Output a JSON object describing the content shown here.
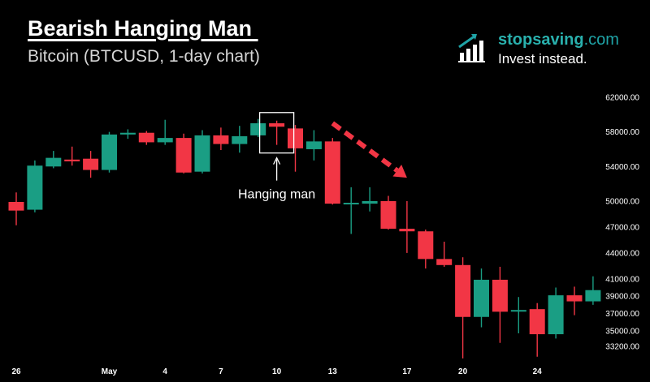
{
  "header": {
    "title": "Bearish Hanging Man ",
    "subtitle": "Bitcoin (BTCUSD, 1-day chart)"
  },
  "logo": {
    "brand_bold": "stopsaving",
    "brand_suffix": ".com",
    "tagline": "Invest instead.",
    "icon": "bar-chart-growth-icon",
    "color": "#1fa3a6"
  },
  "colors": {
    "background": "#000000",
    "up": "#1a9e84",
    "down": "#f23645",
    "axis_text": "#ffffff",
    "annotation_arrow": "#f23645"
  },
  "chart_data": {
    "type": "candlestick",
    "title": "Bearish Hanging Man ",
    "xlabel": "",
    "ylabel": "",
    "ylim": [
      31800,
      63300
    ],
    "grid": false,
    "y_ticks": [
      "62000.00",
      "58000.00",
      "54000.00",
      "50000.00",
      "47000.00",
      "44000.00",
      "41000.00",
      "39000.00",
      "37000.00",
      "35000.00",
      "33200.00"
    ],
    "x_tick_labels": [
      {
        "label": "26",
        "day": 0
      },
      {
        "label": "May",
        "day": 5
      },
      {
        "label": "4",
        "day": 8
      },
      {
        "label": "7",
        "day": 11
      },
      {
        "label": "10",
        "day": 14
      },
      {
        "label": "13",
        "day": 17
      },
      {
        "label": "17",
        "day": 21
      },
      {
        "label": "20",
        "day": 24
      },
      {
        "label": "24",
        "day": 28
      }
    ],
    "candles": [
      {
        "o": 49900,
        "h": 51000,
        "l": 47200,
        "c": 48900
      },
      {
        "o": 49000,
        "h": 54700,
        "l": 48700,
        "c": 54100
      },
      {
        "o": 54000,
        "h": 55800,
        "l": 53800,
        "c": 55000
      },
      {
        "o": 54800,
        "h": 56300,
        "l": 54100,
        "c": 54600
      },
      {
        "o": 54900,
        "h": 55800,
        "l": 52700,
        "c": 53600
      },
      {
        "o": 53600,
        "h": 58000,
        "l": 53300,
        "c": 57700
      },
      {
        "o": 57700,
        "h": 58300,
        "l": 57200,
        "c": 57900
      },
      {
        "o": 57900,
        "h": 58100,
        "l": 56500,
        "c": 56800
      },
      {
        "o": 56800,
        "h": 59400,
        "l": 56500,
        "c": 57300
      },
      {
        "o": 57300,
        "h": 57800,
        "l": 53200,
        "c": 53300
      },
      {
        "o": 53400,
        "h": 58200,
        "l": 53200,
        "c": 57600
      },
      {
        "o": 57600,
        "h": 58500,
        "l": 55900,
        "c": 56600
      },
      {
        "o": 56600,
        "h": 58700,
        "l": 55600,
        "c": 57500
      },
      {
        "o": 57600,
        "h": 59500,
        "l": 57400,
        "c": 59000
      },
      {
        "o": 59000,
        "h": 59300,
        "l": 56500,
        "c": 58600
      },
      {
        "o": 58400,
        "h": 58800,
        "l": 53400,
        "c": 56100
      },
      {
        "o": 56000,
        "h": 58200,
        "l": 54700,
        "c": 56900
      },
      {
        "o": 56900,
        "h": 57300,
        "l": 49600,
        "c": 49700
      },
      {
        "o": 49700,
        "h": 51600,
        "l": 46200,
        "c": 49800
      },
      {
        "o": 49700,
        "h": 51600,
        "l": 48800,
        "c": 50000
      },
      {
        "o": 50000,
        "h": 50600,
        "l": 46700,
        "c": 46800
      },
      {
        "o": 46800,
        "h": 50000,
        "l": 44000,
        "c": 46500
      },
      {
        "o": 46500,
        "h": 46700,
        "l": 42200,
        "c": 43300
      },
      {
        "o": 43300,
        "h": 45300,
        "l": 42400,
        "c": 42600
      },
      {
        "o": 42600,
        "h": 43500,
        "l": 31800,
        "c": 36600
      },
      {
        "o": 36600,
        "h": 42200,
        "l": 35400,
        "c": 40900
      },
      {
        "o": 40900,
        "h": 42400,
        "l": 33600,
        "c": 37200
      },
      {
        "o": 37300,
        "h": 38900,
        "l": 34700,
        "c": 37400
      },
      {
        "o": 37500,
        "h": 38200,
        "l": 32000,
        "c": 34600
      },
      {
        "o": 34600,
        "h": 40000,
        "l": 34100,
        "c": 39100
      },
      {
        "o": 39100,
        "h": 40100,
        "l": 36800,
        "c": 38400
      },
      {
        "o": 38400,
        "h": 41300,
        "l": 38000,
        "c": 39700
      }
    ],
    "annotation": {
      "label": "Hanging man",
      "candle_index": 14
    },
    "trend_arrow": {
      "from": {
        "day": 17,
        "price": 59000
      },
      "to": {
        "day": 21,
        "price": 52700
      },
      "style": "dashed"
    }
  }
}
